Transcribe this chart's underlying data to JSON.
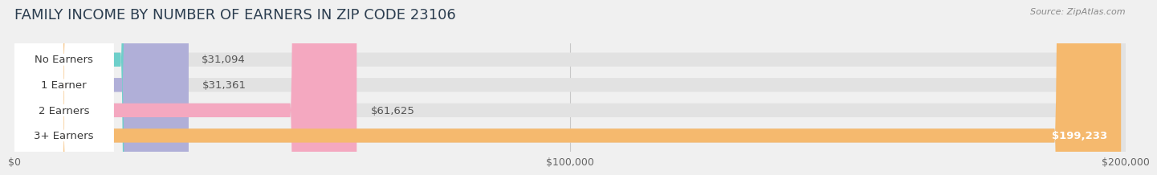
{
  "title": "FAMILY INCOME BY NUMBER OF EARNERS IN ZIP CODE 23106",
  "source": "Source: ZipAtlas.com",
  "categories": [
    "No Earners",
    "1 Earner",
    "2 Earners",
    "3+ Earners"
  ],
  "values": [
    31094,
    31361,
    61625,
    199233
  ],
  "bar_colors": [
    "#6ecfca",
    "#b0afd8",
    "#f4a8c0",
    "#f5b96e"
  ],
  "max_value": 200000,
  "x_ticks": [
    0,
    100000,
    200000
  ],
  "x_tick_labels": [
    "$0",
    "$100,000",
    "$200,000"
  ],
  "value_labels": [
    "$31,094",
    "$31,361",
    "$61,625",
    "$199,233"
  ],
  "title_fontsize": 13,
  "label_fontsize": 9.5,
  "value_fontsize": 9.5,
  "background_color": "#f0f0f0",
  "bar_bg_color": "#e2e2e2"
}
